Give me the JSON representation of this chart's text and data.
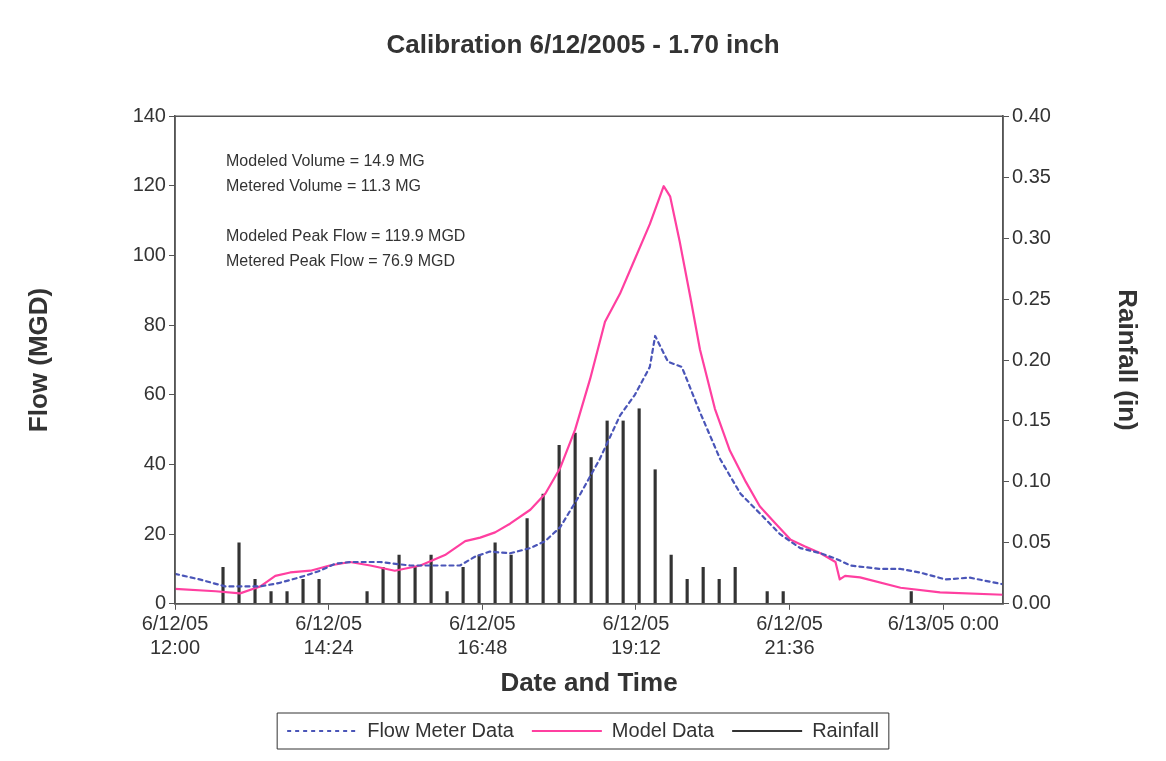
{
  "chart_data": {
    "type": "line",
    "title": "Calibration 6/12/2005 - 1.70 inch",
    "xlabel": "Date and Time",
    "ylabel": "Flow (MGD)",
    "y2label": "Rainfall (in)",
    "annotations": [
      "Modeled Volume = 14.9 MG",
      "Metered Volume = 11.3 MG",
      "Modeled Peak Flow = 119.9 MGD",
      "Metered Peak Flow = 76.9 MGD"
    ],
    "xlim": [
      "2005-06-12T12:00",
      "2005-06-13T00:56"
    ],
    "xticks": [
      {
        "value": "2005-06-12T12:00",
        "label": "6/12/05\n12:00"
      },
      {
        "value": "2005-06-12T14:24",
        "label": "6/12/05\n14:24"
      },
      {
        "value": "2005-06-12T16:48",
        "label": "6/12/05\n16:48"
      },
      {
        "value": "2005-06-12T19:12",
        "label": "6/12/05\n19:12"
      },
      {
        "value": "2005-06-12T21:36",
        "label": "6/12/05\n21:36"
      },
      {
        "value": "2005-06-13T00:00",
        "label": "6/13/05 0:00"
      }
    ],
    "ylim": [
      0,
      140
    ],
    "yticks": [
      0,
      20,
      40,
      60,
      80,
      100,
      120,
      140
    ],
    "y2lim": [
      0,
      0.4
    ],
    "y2ticks": [
      {
        "value": 0,
        "label": "0.00"
      },
      {
        "value": 0.05,
        "label": "0.05"
      },
      {
        "value": 0.1,
        "label": "0.10"
      },
      {
        "value": 0.15,
        "label": "0.15"
      },
      {
        "value": 0.2,
        "label": "0.20"
      },
      {
        "value": 0.25,
        "label": "0.25"
      },
      {
        "value": 0.3,
        "label": "0.30"
      },
      {
        "value": 0.35,
        "label": "0.35"
      },
      {
        "value": 0.4,
        "label": "0.40"
      }
    ],
    "grid": false,
    "legend": "bottom",
    "marker": "none",
    "series": [
      {
        "name": "Flow Meter Data",
        "line_style": "dotted",
        "color": "#4a55b8",
        "x": [
          "2005-06-12T12:00",
          "2005-06-12T12:23",
          "2005-06-12T12:47",
          "2005-06-12T13:20",
          "2005-06-12T13:38",
          "2005-06-12T13:57",
          "2005-06-12T14:16",
          "2005-06-12T14:30",
          "2005-06-12T14:44",
          "2005-06-12T15:12",
          "2005-06-12T15:40",
          "2005-06-12T16:08",
          "2005-06-12T16:27",
          "2005-06-12T16:41",
          "2005-06-12T16:55",
          "2005-06-12T17:14",
          "2005-06-12T17:33",
          "2005-06-12T17:47",
          "2005-06-12T18:01",
          "2005-06-12T18:20",
          "2005-06-12T18:38",
          "2005-06-12T18:57",
          "2005-06-12T19:11",
          "2005-06-12T19:25",
          "2005-06-12T19:30",
          "2005-06-12T19:42",
          "2005-06-12T19:55",
          "2005-06-12T20:12",
          "2005-06-12T20:31",
          "2005-06-12T20:50",
          "2005-06-12T21:08",
          "2005-06-12T21:27",
          "2005-06-12T21:46",
          "2005-06-12T22:05",
          "2005-06-12T22:19",
          "2005-06-12T22:33",
          "2005-06-12T23:01",
          "2005-06-12T23:20",
          "2005-06-12T23:38",
          "2005-06-13T00:02",
          "2005-06-13T00:25",
          "2005-06-13T00:56"
        ],
        "values": [
          8.6,
          7,
          5,
          5,
          6,
          7.6,
          9.5,
          11.5,
          12,
          12,
          11,
          11,
          11,
          13.5,
          15,
          14.5,
          16,
          18,
          22,
          31.6,
          41.5,
          54,
          60,
          68,
          76.9,
          69.5,
          68,
          55,
          41.5,
          31.6,
          26,
          20,
          16,
          14.5,
          13,
          11,
          10,
          10,
          9,
          7,
          7.5,
          5.6
        ]
      },
      {
        "name": "Model Data",
        "line_style": "solid",
        "color": "#ff3fa0",
        "x": [
          "2005-06-12T12:00",
          "2005-06-12T12:38",
          "2005-06-12T13:01",
          "2005-06-12T13:20",
          "2005-06-12T13:34",
          "2005-06-12T13:48",
          "2005-06-12T14:07",
          "2005-06-12T14:25",
          "2005-06-12T14:44",
          "2005-06-12T15:03",
          "2005-06-12T15:26",
          "2005-06-12T15:50",
          "2005-06-12T16:13",
          "2005-06-12T16:32",
          "2005-06-12T16:46",
          "2005-06-12T17:00",
          "2005-06-12T17:14",
          "2005-06-12T17:33",
          "2005-06-12T17:47",
          "2005-06-12T18:01",
          "2005-06-12T18:15",
          "2005-06-12T18:29",
          "2005-06-12T18:43",
          "2005-06-12T18:57",
          "2005-06-12T19:11",
          "2005-06-12T19:25",
          "2005-06-12T19:38",
          "2005-06-12T19:44",
          "2005-06-12T19:53",
          "2005-06-12T20:03",
          "2005-06-12T20:12",
          "2005-06-12T20:26",
          "2005-06-12T20:40",
          "2005-06-12T20:55",
          "2005-06-12T21:08",
          "2005-06-12T21:23",
          "2005-06-12T21:37",
          "2005-06-12T21:50",
          "2005-06-12T22:05",
          "2005-06-12T22:19",
          "2005-06-12T22:23",
          "2005-06-12T22:28",
          "2005-06-12T22:42",
          "2005-06-12T23:20",
          "2005-06-12T23:57",
          "2005-06-13T00:56"
        ],
        "values": [
          4.3,
          3.6,
          3,
          5,
          8,
          9,
          9.5,
          11,
          12,
          11,
          9.5,
          11,
          14,
          18,
          19,
          20.5,
          23,
          27,
          31.6,
          39,
          50,
          64.5,
          81,
          89,
          99,
          109,
          119.9,
          117,
          104,
          88,
          73,
          56,
          44,
          35,
          28,
          23,
          18.4,
          16.5,
          14.5,
          12,
          7,
          8,
          7.6,
          4.6,
          3.3,
          2.6
        ]
      },
      {
        "name": "Rainfall",
        "type": "bar",
        "axis": "y2",
        "color": "#333333",
        "x": [
          "2005-06-12T12:45",
          "2005-06-12T13:00",
          "2005-06-12T13:15",
          "2005-06-12T13:30",
          "2005-06-12T13:45",
          "2005-06-12T14:00",
          "2005-06-12T14:15",
          "2005-06-12T15:00",
          "2005-06-12T15:15",
          "2005-06-12T15:30",
          "2005-06-12T15:45",
          "2005-06-12T16:00",
          "2005-06-12T16:15",
          "2005-06-12T16:30",
          "2005-06-12T16:45",
          "2005-06-12T17:00",
          "2005-06-12T17:15",
          "2005-06-12T17:30",
          "2005-06-12T17:45",
          "2005-06-12T18:00",
          "2005-06-12T18:15",
          "2005-06-12T18:30",
          "2005-06-12T18:45",
          "2005-06-12T19:00",
          "2005-06-12T19:15",
          "2005-06-12T19:30",
          "2005-06-12T19:45",
          "2005-06-12T20:00",
          "2005-06-12T20:15",
          "2005-06-12T20:30",
          "2005-06-12T20:45",
          "2005-06-12T21:15",
          "2005-06-12T21:30",
          "2005-06-12T23:30"
        ],
        "values": [
          0.03,
          0.05,
          0.02,
          0.01,
          0.01,
          0.02,
          0.02,
          0.01,
          0.03,
          0.04,
          0.03,
          0.04,
          0.01,
          0.03,
          0.04,
          0.05,
          0.04,
          0.07,
          0.09,
          0.13,
          0.14,
          0.12,
          0.15,
          0.15,
          0.16,
          0.11,
          0.04,
          0.02,
          0.03,
          0.02,
          0.03,
          0.01,
          0.01,
          0.01
        ]
      }
    ]
  }
}
